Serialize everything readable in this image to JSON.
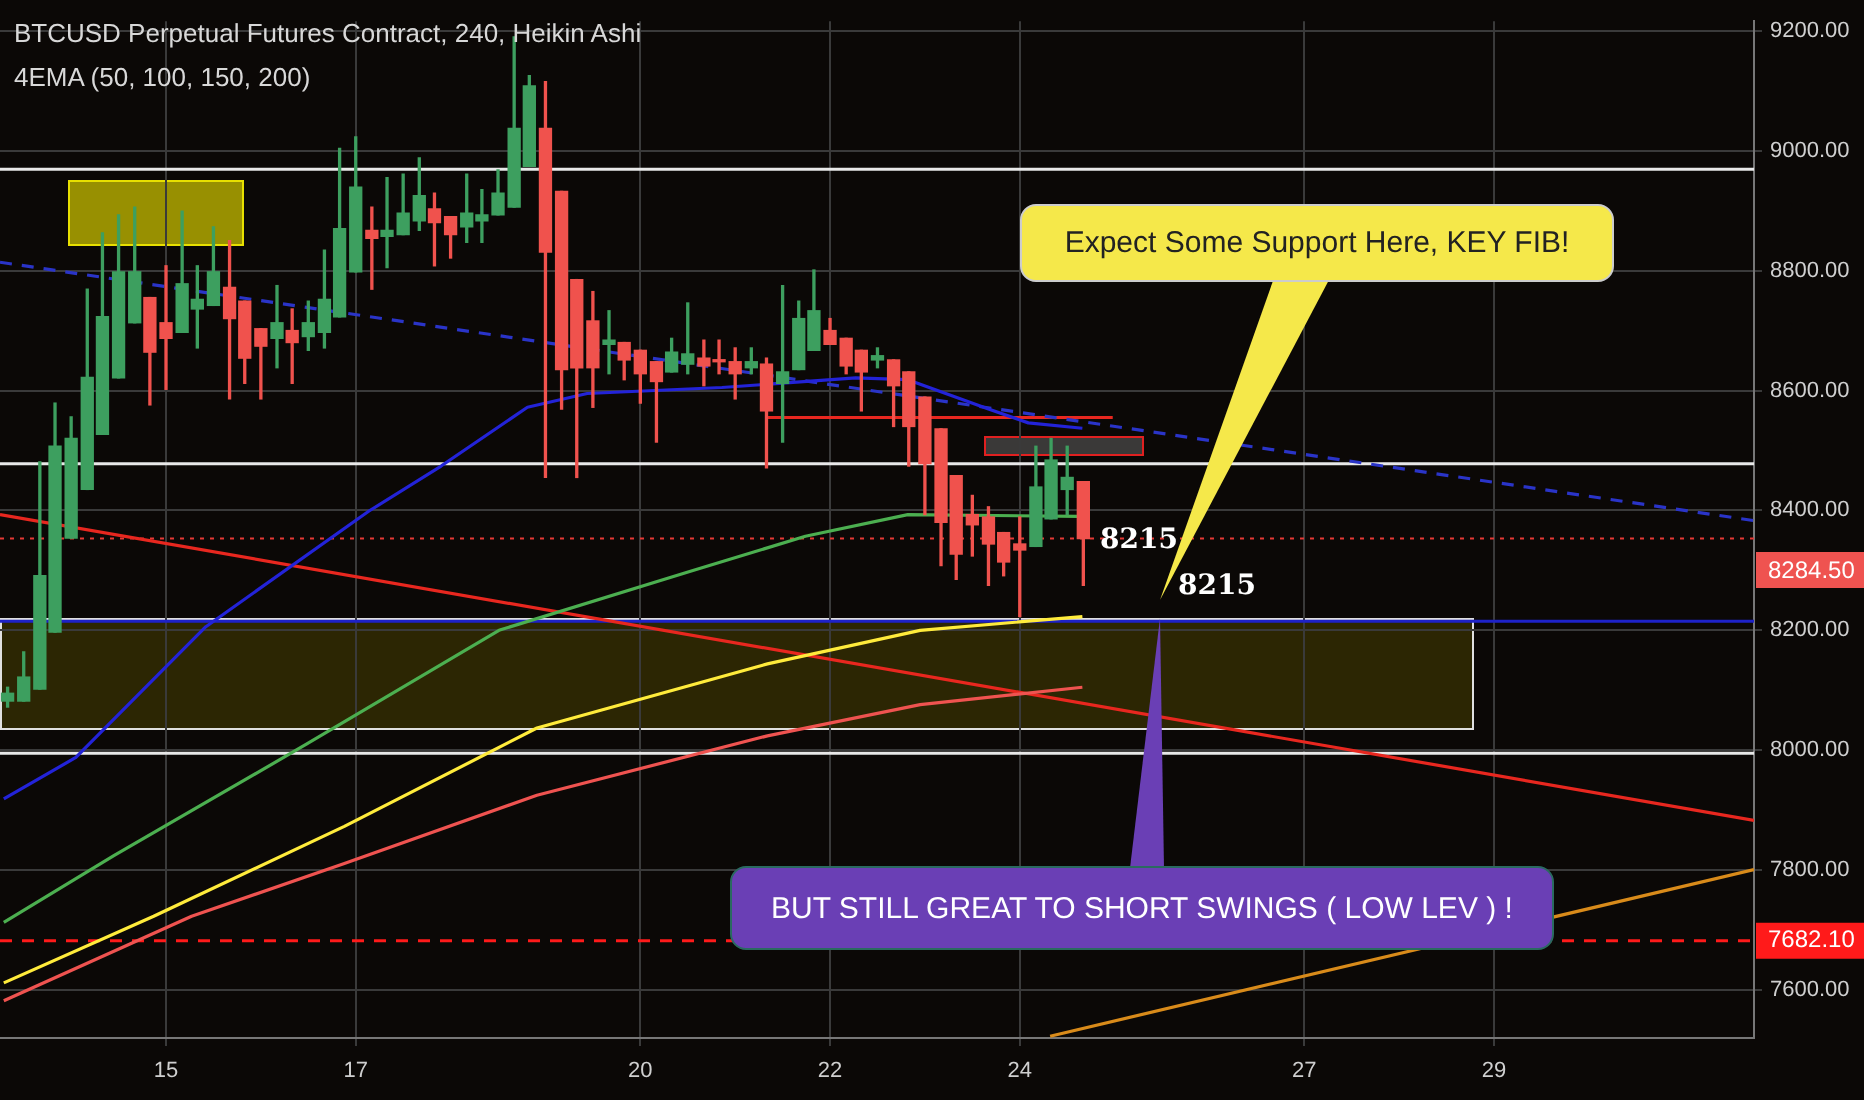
{
  "chart_data": {
    "type": "candlestick",
    "title": "BTCUSD Perpetual Futures Contract, 240, Heikin Ashi",
    "subtitle": "4EMA (50, 100, 150, 200)",
    "x": [
      13.33,
      13.5,
      13.67,
      13.83,
      14,
      14.17,
      14.33,
      14.5,
      14.67,
      14.83,
      15,
      15.17,
      15.33,
      15.5,
      15.67,
      15.83,
      16,
      16.17,
      16.33,
      16.5,
      16.67,
      16.83,
      17,
      17.17,
      17.33,
      17.5,
      17.67,
      17.83,
      18,
      18.17,
      18.33,
      18.5,
      18.67,
      18.83,
      19,
      19.17,
      19.33,
      19.5,
      19.67,
      19.83,
      20,
      20.17,
      20.33,
      20.5,
      20.67,
      20.83,
      21,
      21.17,
      21.33,
      21.5,
      21.67,
      21.83,
      22,
      22.17,
      22.33,
      22.5,
      22.67,
      22.83,
      23,
      23.17,
      23.33,
      23.5,
      23.67,
      23.83,
      24,
      24.17,
      24.33,
      24.5,
      24.67
    ],
    "ohlc": [
      [
        8082,
        8105,
        8072,
        8095
      ],
      [
        8082,
        8164,
        8082,
        8122
      ],
      [
        8102,
        8481,
        8102,
        8291
      ],
      [
        8197,
        8579,
        8197,
        8507
      ],
      [
        8354,
        8556,
        8354,
        8520
      ],
      [
        8435,
        8769,
        8435,
        8622
      ],
      [
        8527,
        8863,
        8527,
        8723
      ],
      [
        8621,
        8893,
        8621,
        8798
      ],
      [
        8713,
        8906,
        8713,
        8798
      ],
      [
        8755,
        8755,
        8576,
        8664
      ],
      [
        8713,
        8808,
        8602,
        8687
      ],
      [
        8697,
        8899,
        8697,
        8778
      ],
      [
        8736,
        8808,
        8671,
        8752
      ],
      [
        8742,
        8873,
        8742,
        8798
      ],
      [
        8772,
        8850,
        8586,
        8720
      ],
      [
        8749,
        8749,
        8612,
        8654
      ],
      [
        8703,
        8703,
        8586,
        8674
      ],
      [
        8687,
        8775,
        8638,
        8713
      ],
      [
        8700,
        8736,
        8612,
        8680
      ],
      [
        8690,
        8749,
        8667,
        8713
      ],
      [
        8697,
        8834,
        8671,
        8752
      ],
      [
        8723,
        9004,
        8723,
        8870
      ],
      [
        8798,
        9023,
        8798,
        8939
      ],
      [
        8867,
        8906,
        8769,
        8854
      ],
      [
        8857,
        8955,
        8805,
        8867
      ],
      [
        8860,
        8961,
        8860,
        8896
      ],
      [
        8883,
        8988,
        8867,
        8925
      ],
      [
        8903,
        8929,
        8808,
        8880
      ],
      [
        8890,
        8890,
        8821,
        8860
      ],
      [
        8873,
        8961,
        8847,
        8896
      ],
      [
        8883,
        8935,
        8847,
        8893
      ],
      [
        8893,
        8968,
        8893,
        8929
      ],
      [
        8906,
        9190,
        8906,
        9037
      ],
      [
        8974,
        9125,
        8974,
        9108
      ],
      [
        9037,
        9115,
        8455,
        8831
      ],
      [
        8932,
        8932,
        8569,
        8635
      ],
      [
        8785,
        8785,
        8455,
        8638
      ],
      [
        8716,
        8765,
        8572,
        8638
      ],
      [
        8677,
        8733,
        8628,
        8684
      ],
      [
        8680,
        8680,
        8618,
        8651
      ],
      [
        8667,
        8667,
        8579,
        8628
      ],
      [
        8648,
        8648,
        8514,
        8615
      ],
      [
        8631,
        8687,
        8631,
        8664
      ],
      [
        8644,
        8746,
        8628,
        8661
      ],
      [
        8654,
        8684,
        8608,
        8641
      ],
      [
        8651,
        8684,
        8628,
        8648
      ],
      [
        8648,
        8671,
        8586,
        8628
      ],
      [
        8638,
        8671,
        8628,
        8648
      ],
      [
        8644,
        8654,
        8471,
        8566
      ],
      [
        8612,
        8775,
        8514,
        8631
      ],
      [
        8635,
        8749,
        8635,
        8720
      ],
      [
        8667,
        8801,
        8667,
        8733
      ],
      [
        8700,
        8720,
        8677,
        8677
      ],
      [
        8687,
        8687,
        8628,
        8641
      ],
      [
        8667,
        8667,
        8566,
        8631
      ],
      [
        8651,
        8671,
        8638,
        8658
      ],
      [
        8651,
        8651,
        8540,
        8608
      ],
      [
        8631,
        8631,
        8474,
        8540
      ],
      [
        8589,
        8589,
        8393,
        8478
      ],
      [
        8536,
        8536,
        8308,
        8380
      ],
      [
        8458,
        8458,
        8285,
        8327
      ],
      [
        8393,
        8425,
        8324,
        8376
      ],
      [
        8389,
        8406,
        8275,
        8344
      ],
      [
        8363,
        8363,
        8291,
        8314
      ],
      [
        8344,
        8389,
        8223,
        8334
      ],
      [
        8340,
        8507,
        8340,
        8439
      ],
      [
        8386,
        8520,
        8386,
        8484
      ],
      [
        8435,
        8507,
        8393,
        8455
      ],
      [
        8448,
        8448,
        8275,
        8353
      ]
    ],
    "colors": [
      "#3d9f5f",
      "#3d9f5f",
      "#3d9f5f",
      "#3d9f5f",
      "#3d9f5f",
      "#3d9f5f",
      "#3d9f5f",
      "#3d9f5f",
      "#3d9f5f",
      "#f0524d",
      "#f0524d",
      "#3d9f5f",
      "#3d9f5f",
      "#3d9f5f",
      "#f0524d",
      "#f0524d",
      "#f0524d",
      "#3d9f5f",
      "#f0524d",
      "#3d9f5f",
      "#3d9f5f",
      "#3d9f5f",
      "#3d9f5f",
      "#f0524d",
      "#3d9f5f",
      "#3d9f5f",
      "#3d9f5f",
      "#f0524d",
      "#f0524d",
      "#3d9f5f",
      "#3d9f5f",
      "#3d9f5f",
      "#3d9f5f",
      "#3d9f5f",
      "#f0524d",
      "#f0524d",
      "#f0524d",
      "#f0524d",
      "#3d9f5f",
      "#f0524d",
      "#f0524d",
      "#f0524d",
      "#3d9f5f",
      "#3d9f5f",
      "#f0524d",
      "#f0524d",
      "#f0524d",
      "#3d9f5f",
      "#f0524d",
      "#3d9f5f",
      "#3d9f5f",
      "#3d9f5f",
      "#f0524d",
      "#f0524d",
      "#f0524d",
      "#3d9f5f",
      "#f0524d",
      "#f0524d",
      "#f0524d",
      "#f0524d",
      "#f0524d",
      "#f0524d",
      "#f0524d",
      "#f0524d",
      "#f0524d",
      "#3d9f5f",
      "#3d9f5f",
      "#3d9f5f",
      "#f0524d"
    ],
    "series": [
      {
        "type": "line",
        "color": "#2323d8",
        "x": [
          13.29,
          14.05,
          15.42,
          17.14,
          17.9,
          18.81,
          19.44,
          20.86,
          22.27,
          22.82,
          23.67,
          24.09,
          24.66
        ],
        "values": [
          7919,
          7988,
          8206,
          8399,
          8474,
          8572,
          8595,
          8605,
          8621,
          8618,
          8569,
          8546,
          8537
        ]
      },
      {
        "type": "line",
        "color": "#4caf50",
        "x": [
          13.29,
          14.45,
          16.48,
          18.51,
          20.52,
          21.74,
          22.82,
          24.62
        ],
        "values": [
          7713,
          7824,
          8010,
          8200,
          8298,
          8357,
          8393,
          8390
        ]
      },
      {
        "type": "line",
        "color": "#ffeb3b",
        "x": [
          13.29,
          14.87,
          16.88,
          18.91,
          21.34,
          22.95,
          24.66
        ],
        "values": [
          7612,
          7723,
          7873,
          8037,
          8144,
          8200,
          8223
        ]
      },
      {
        "type": "line",
        "color": "#ef5350",
        "x": [
          13.29,
          15.27,
          16.88,
          18.91,
          21.34,
          22.95,
          24.66
        ],
        "values": [
          7582,
          7723,
          7811,
          7925,
          8024,
          8076,
          8105
        ]
      },
      {
        "type": "line",
        "color": "#e8271f",
        "x": [
          13.25,
          31.74
        ],
        "values": [
          8393,
          7883
        ]
      },
      {
        "type": "line",
        "color": "#2a34c8",
        "line_style": "dashed",
        "x": [
          13.25,
          31.74
        ],
        "values": [
          8814,
          8383
        ]
      },
      {
        "type": "line",
        "color": "#d98b1a",
        "x": [
          24.32,
          31.74
        ],
        "values": [
          7523,
          7801
        ]
      },
      {
        "type": "line",
        "color": "#e8271f",
        "x": [
          21.32,
          24.98
        ],
        "values": [
          8555,
          8555
        ]
      }
    ],
    "ref_lines": [
      {
        "axis": "y",
        "value": 8969,
        "color": "#e8e8e8"
      },
      {
        "axis": "y",
        "value": 8478,
        "color": "#e8e8e8"
      },
      {
        "axis": "y",
        "value": 7995,
        "color": "#e8e8e8"
      },
      {
        "axis": "y",
        "value": 8215,
        "color": "#1e22c8"
      },
      {
        "axis": "y",
        "value": 8353,
        "color": "#e53935",
        "line_style": "dotted"
      },
      {
        "axis": "y",
        "value": 7682.1,
        "label": "7682.10",
        "color": "#ff1a1a",
        "line_style": "dashed"
      }
    ],
    "annotations": [
      "8284.50",
      "Expect Some Support Here, KEY FIB!",
      "BUT STILL GREAT TO SHORT SWINGS ( LOW LEV ) !",
      "8215",
      "8215"
    ],
    "xlim": [
      13.25,
      31.74
    ],
    "xticks": [
      15,
      17,
      20,
      22,
      24,
      27,
      29
    ],
    "ylim": [
      7520,
      9216
    ],
    "yticks": [
      {
        "value": 7600,
        "label": "7600.00"
      },
      {
        "value": 7800,
        "label": "7800.00"
      },
      {
        "value": 8000,
        "label": "8000.00"
      },
      {
        "value": 8200,
        "label": "8200.00"
      },
      {
        "value": 8400,
        "label": "8400.00"
      },
      {
        "value": 8600,
        "label": "8600.00"
      },
      {
        "value": 8800,
        "label": "8800.00"
      },
      {
        "value": 9000,
        "label": "9000.00"
      },
      {
        "value": 9200,
        "label": "9200.00"
      }
    ],
    "grid": true
  }
}
